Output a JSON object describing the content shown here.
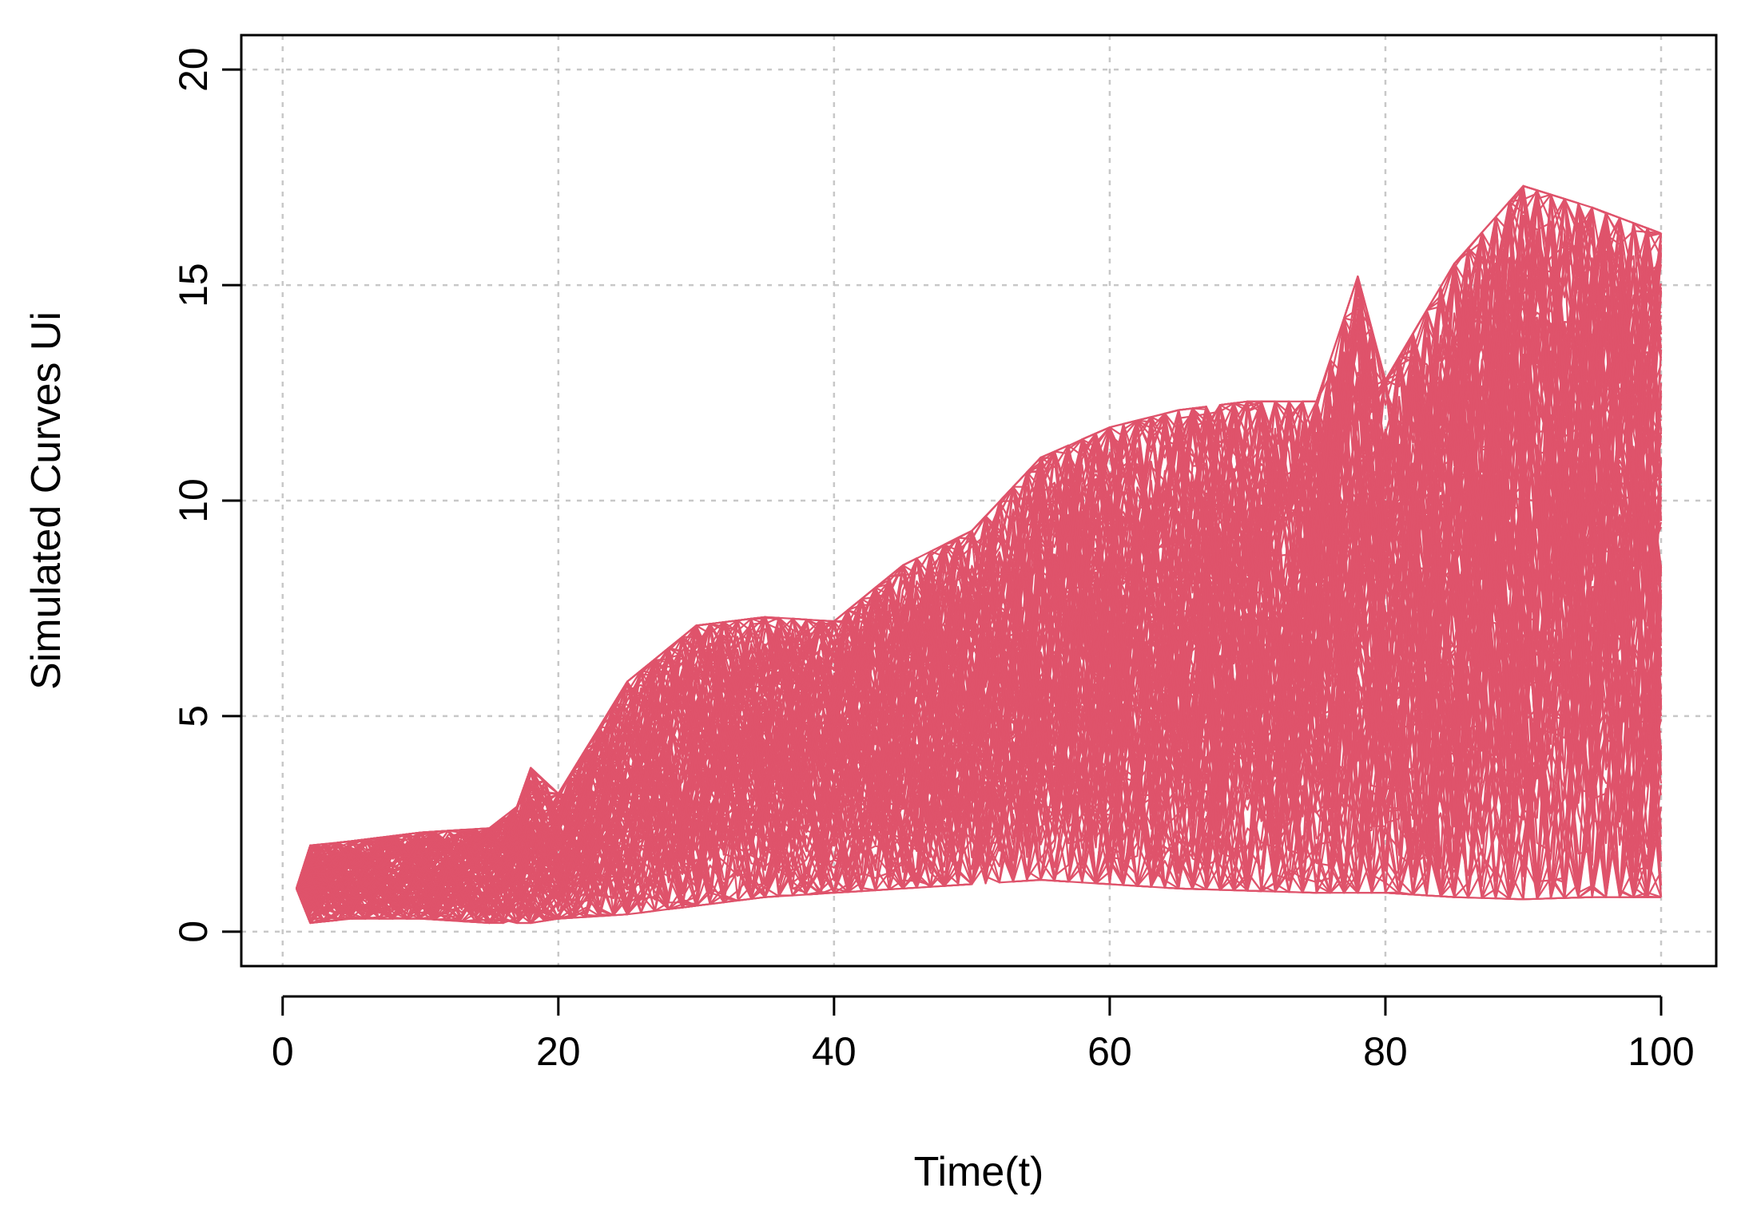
{
  "chart_data": {
    "type": "line",
    "title": "",
    "xlabel": "Time(t)",
    "ylabel": "Simulated Curves Ui",
    "xlim": [
      -3,
      104
    ],
    "ylim": [
      -0.8,
      20.8
    ],
    "xticks": [
      0,
      20,
      40,
      60,
      80,
      100
    ],
    "yticks": [
      0,
      5,
      10,
      15,
      20
    ],
    "grid": true,
    "legend": "none",
    "line_color": "#DF536B",
    "x": [
      1,
      2,
      5,
      10,
      15,
      17,
      18,
      20,
      25,
      30,
      35,
      40,
      45,
      50,
      55,
      60,
      65,
      70,
      75,
      78,
      80,
      85,
      90,
      95,
      100
    ],
    "upper_envelope": [
      1.0,
      2.0,
      2.1,
      2.3,
      2.4,
      2.9,
      3.8,
      3.2,
      5.8,
      7.1,
      7.3,
      7.2,
      8.5,
      9.3,
      11.0,
      11.7,
      12.1,
      12.3,
      12.3,
      15.2,
      12.8,
      15.5,
      17.3,
      16.8,
      16.2
    ],
    "lower_envelope": [
      1.0,
      0.2,
      0.3,
      0.3,
      0.2,
      0.2,
      0.2,
      0.3,
      0.4,
      0.6,
      0.8,
      0.9,
      1.0,
      1.1,
      1.2,
      1.1,
      1.0,
      0.95,
      0.9,
      0.9,
      0.9,
      0.8,
      0.75,
      0.8,
      0.8
    ]
  }
}
